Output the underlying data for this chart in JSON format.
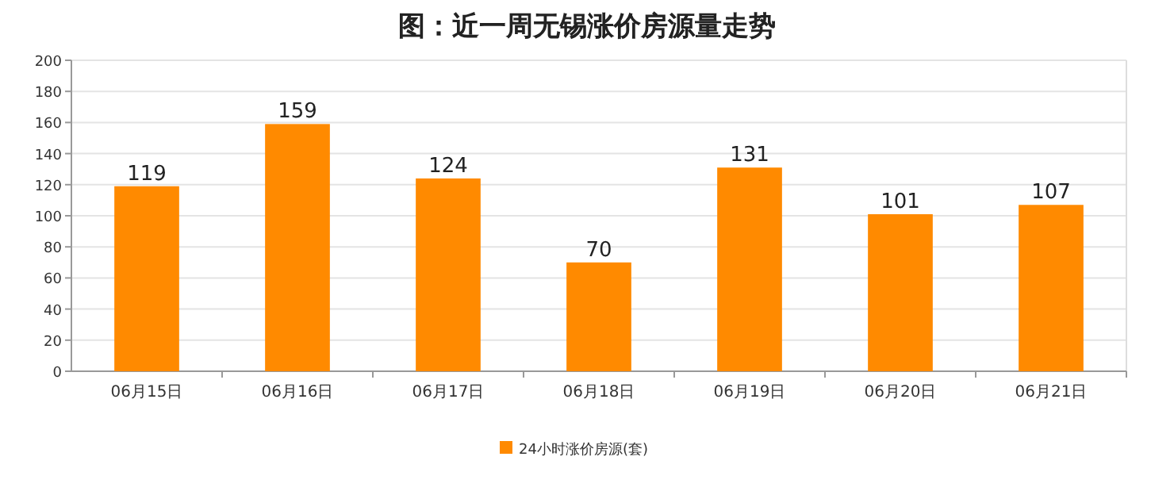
{
  "chart_data": {
    "type": "bar",
    "title": "图：近一周无锡涨价房源量走势",
    "categories": [
      "06月15日",
      "06月16日",
      "06月17日",
      "06月18日",
      "06月19日",
      "06月20日",
      "06月21日"
    ],
    "series": [
      {
        "name": "24小时涨价房源(套)",
        "color": "#ff8a00",
        "values": [
          119,
          159,
          124,
          70,
          131,
          101,
          107
        ]
      }
    ],
    "ylim": [
      0,
      200
    ],
    "yticks": [
      0,
      20,
      40,
      60,
      80,
      100,
      120,
      140,
      160,
      180,
      200
    ],
    "grid": "y",
    "legend": "bottom",
    "data_labels": true
  }
}
